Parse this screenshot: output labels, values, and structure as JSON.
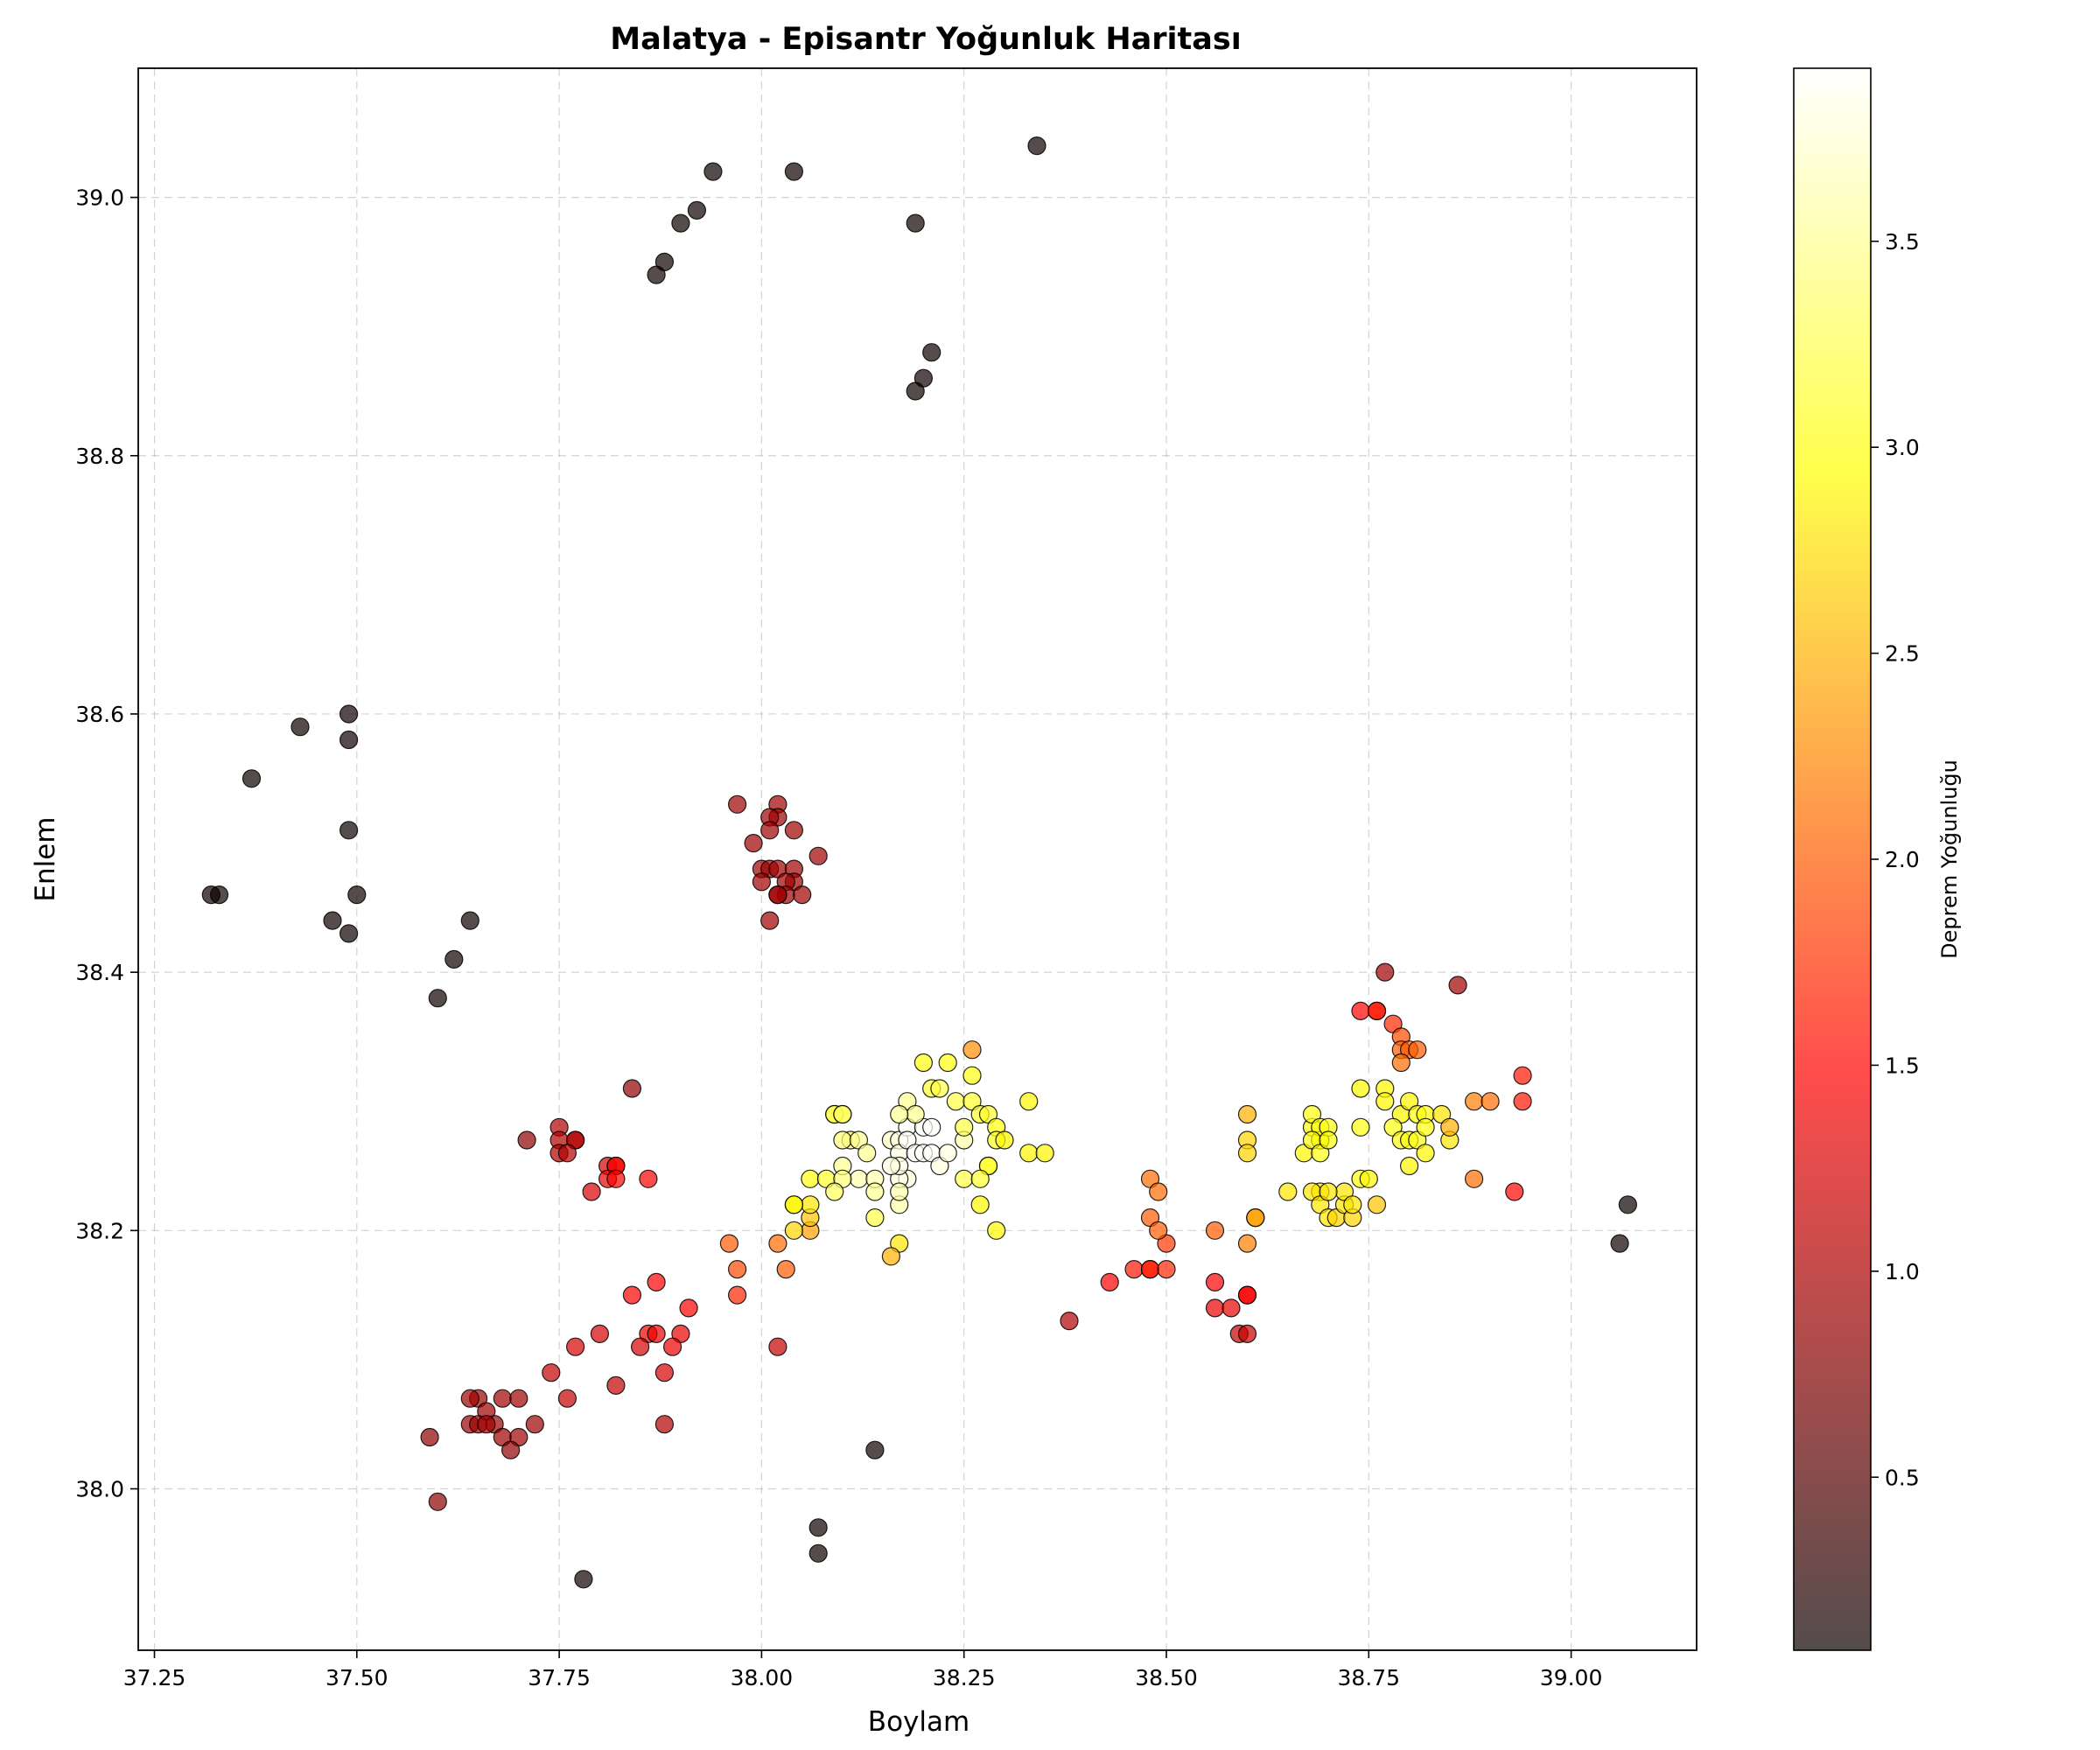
{
  "chart_data": {
    "type": "scatter",
    "title": "Malatya - Episantr Yoğunluk Haritası",
    "xlabel": "Boylam",
    "ylabel": "Enlem",
    "xlim": [
      37.23,
      39.155
    ],
    "ylim": [
      37.875,
      39.1
    ],
    "xticks": [
      37.25,
      37.5,
      37.75,
      38.0,
      38.25,
      38.5,
      38.75,
      39.0
    ],
    "xtick_labels": [
      "37.25",
      "37.50",
      "37.75",
      "38.00",
      "38.25",
      "38.50",
      "38.75",
      "39.00"
    ],
    "yticks": [
      38.0,
      38.2,
      38.4,
      38.6,
      38.8,
      39.0
    ],
    "ytick_labels": [
      "38.0",
      "38.2",
      "38.4",
      "38.6",
      "38.8",
      "39.0"
    ],
    "grid": true,
    "colormap": "hot",
    "point_alpha": 0.7,
    "colorbar": {
      "label": "Deprem Yoğunluğu",
      "range": [
        0.08,
        3.92
      ],
      "ticks": [
        0.5,
        1.0,
        1.5,
        2.0,
        2.5,
        3.0,
        3.5
      ],
      "tick_labels": [
        "0.5",
        "1.0",
        "1.5",
        "2.0",
        "2.5",
        "3.0",
        "3.5"
      ]
    },
    "point_fields": [
      "lon",
      "lat",
      "density"
    ],
    "points": [
      [
        38.34,
        39.04,
        0.1
      ],
      [
        38.04,
        39.02,
        0.1
      ],
      [
        37.94,
        39.02,
        0.1
      ],
      [
        37.92,
        38.99,
        0.1
      ],
      [
        37.9,
        38.98,
        0.1
      ],
      [
        37.88,
        38.95,
        0.1
      ],
      [
        37.87,
        38.94,
        0.1
      ],
      [
        38.19,
        38.98,
        0.1
      ],
      [
        38.21,
        38.88,
        0.1
      ],
      [
        38.2,
        38.86,
        0.1
      ],
      [
        38.19,
        38.85,
        0.1
      ],
      [
        37.49,
        38.6,
        0.1
      ],
      [
        37.43,
        38.59,
        0.1
      ],
      [
        37.49,
        38.58,
        0.1
      ],
      [
        37.37,
        38.55,
        0.1
      ],
      [
        37.49,
        38.51,
        0.1
      ],
      [
        37.33,
        38.46,
        0.1
      ],
      [
        37.32,
        38.46,
        0.1
      ],
      [
        37.5,
        38.46,
        0.1
      ],
      [
        37.47,
        38.44,
        0.1
      ],
      [
        37.64,
        38.44,
        0.1
      ],
      [
        37.49,
        38.43,
        0.1
      ],
      [
        37.62,
        38.41,
        0.1
      ],
      [
        37.6,
        38.38,
        0.1
      ],
      [
        39.07,
        38.22,
        0.1
      ],
      [
        39.06,
        38.19,
        0.1
      ],
      [
        38.14,
        38.03,
        0.1
      ],
      [
        38.07,
        37.97,
        0.1
      ],
      [
        38.07,
        37.95,
        0.1
      ],
      [
        37.78,
        37.93,
        0.1
      ],
      [
        37.97,
        38.53,
        0.9
      ],
      [
        38.02,
        38.53,
        0.9
      ],
      [
        38.02,
        38.52,
        0.9
      ],
      [
        38.01,
        38.52,
        0.9
      ],
      [
        38.01,
        38.51,
        0.9
      ],
      [
        38.04,
        38.51,
        0.9
      ],
      [
        37.99,
        38.5,
        0.9
      ],
      [
        38.07,
        38.49,
        0.9
      ],
      [
        38.0,
        38.48,
        0.9
      ],
      [
        38.01,
        38.48,
        0.9
      ],
      [
        38.02,
        38.48,
        0.9
      ],
      [
        38.04,
        38.48,
        0.9
      ],
      [
        38.04,
        38.47,
        0.9
      ],
      [
        38.0,
        38.47,
        0.9
      ],
      [
        38.03,
        38.47,
        0.9
      ],
      [
        38.03,
        38.46,
        0.9
      ],
      [
        38.02,
        38.46,
        0.9
      ],
      [
        38.02,
        38.46,
        0.9
      ],
      [
        38.05,
        38.46,
        0.9
      ],
      [
        38.01,
        38.44,
        0.9
      ],
      [
        37.84,
        38.31,
        0.8
      ],
      [
        37.71,
        38.27,
        0.8
      ],
      [
        37.75,
        38.28,
        1.0
      ],
      [
        37.75,
        38.27,
        1.0
      ],
      [
        37.77,
        38.27,
        1.0
      ],
      [
        37.77,
        38.27,
        1.0
      ],
      [
        37.75,
        38.26,
        1.0
      ],
      [
        37.76,
        38.26,
        1.0
      ],
      [
        37.81,
        38.25,
        1.2
      ],
      [
        37.82,
        38.25,
        1.4
      ],
      [
        37.82,
        38.25,
        1.4
      ],
      [
        37.81,
        38.24,
        1.3
      ],
      [
        37.82,
        38.24,
        1.4
      ],
      [
        37.86,
        38.24,
        1.4
      ],
      [
        37.79,
        38.23,
        1.2
      ],
      [
        37.84,
        38.15,
        1.4
      ],
      [
        37.87,
        38.16,
        1.4
      ],
      [
        37.91,
        38.14,
        1.4
      ],
      [
        37.86,
        38.12,
        1.3
      ],
      [
        37.87,
        38.12,
        1.3
      ],
      [
        37.9,
        38.12,
        1.3
      ],
      [
        37.89,
        38.11,
        1.3
      ],
      [
        37.85,
        38.11,
        1.2
      ],
      [
        37.8,
        38.12,
        1.2
      ],
      [
        37.77,
        38.11,
        1.2
      ],
      [
        37.88,
        38.09,
        1.2
      ],
      [
        37.74,
        38.09,
        1.1
      ],
      [
        37.82,
        38.08,
        1.1
      ],
      [
        37.76,
        38.07,
        1.1
      ],
      [
        37.88,
        38.05,
        1.0
      ],
      [
        38.02,
        38.11,
        1.1
      ],
      [
        37.65,
        38.07,
        0.9
      ],
      [
        37.68,
        38.07,
        0.9
      ],
      [
        37.64,
        38.07,
        0.9
      ],
      [
        37.7,
        38.07,
        0.9
      ],
      [
        37.66,
        38.06,
        0.9
      ],
      [
        37.64,
        38.05,
        0.9
      ],
      [
        37.65,
        38.05,
        0.9
      ],
      [
        37.67,
        38.05,
        0.9
      ],
      [
        37.72,
        38.05,
        0.9
      ],
      [
        37.66,
        38.05,
        0.9
      ],
      [
        37.68,
        38.04,
        0.9
      ],
      [
        37.7,
        38.04,
        0.9
      ],
      [
        37.59,
        38.04,
        0.8
      ],
      [
        37.69,
        38.03,
        0.8
      ],
      [
        37.6,
        37.99,
        0.8
      ],
      [
        37.96,
        38.19,
        2.0
      ],
      [
        37.97,
        38.17,
        1.9
      ],
      [
        37.97,
        38.15,
        1.7
      ],
      [
        38.02,
        38.19,
        2.1
      ],
      [
        38.03,
        38.17,
        2.0
      ],
      [
        38.06,
        38.2,
        2.4
      ],
      [
        38.06,
        38.21,
        2.6
      ],
      [
        38.06,
        38.22,
        2.8
      ],
      [
        38.04,
        38.2,
        2.7
      ],
      [
        38.04,
        38.22,
        2.9
      ],
      [
        38.04,
        38.22,
        2.9
      ],
      [
        38.06,
        38.24,
        3.0
      ],
      [
        38.17,
        38.19,
        2.8
      ],
      [
        38.16,
        38.18,
        2.5
      ],
      [
        38.14,
        38.21,
        3.2
      ],
      [
        38.08,
        38.24,
        3.1
      ],
      [
        38.09,
        38.29,
        3.2
      ],
      [
        38.09,
        38.29,
        3.2
      ],
      [
        38.1,
        38.29,
        3.3
      ],
      [
        38.1,
        38.29,
        3.3
      ],
      [
        38.11,
        38.27,
        3.4
      ],
      [
        38.1,
        38.27,
        3.4
      ],
      [
        38.12,
        38.27,
        3.5
      ],
      [
        38.13,
        38.26,
        3.5
      ],
      [
        38.1,
        38.25,
        3.5
      ],
      [
        38.12,
        38.24,
        3.6
      ],
      [
        38.14,
        38.24,
        3.6
      ],
      [
        38.14,
        38.23,
        3.5
      ],
      [
        38.1,
        38.24,
        3.4
      ],
      [
        38.09,
        38.23,
        3.3
      ],
      [
        38.16,
        38.27,
        3.7
      ],
      [
        38.17,
        38.27,
        3.8
      ],
      [
        38.17,
        38.26,
        3.8
      ],
      [
        38.18,
        38.28,
        3.9
      ],
      [
        38.18,
        38.27,
        3.9
      ],
      [
        38.2,
        38.28,
        3.9
      ],
      [
        38.21,
        38.28,
        3.9
      ],
      [
        38.19,
        38.26,
        3.9
      ],
      [
        38.2,
        38.26,
        3.9
      ],
      [
        38.21,
        38.26,
        3.9
      ],
      [
        38.18,
        38.24,
        3.8
      ],
      [
        38.17,
        38.24,
        3.8
      ],
      [
        38.17,
        38.25,
        3.8
      ],
      [
        38.16,
        38.25,
        3.8
      ],
      [
        38.22,
        38.25,
        3.8
      ],
      [
        38.23,
        38.26,
        3.8
      ],
      [
        38.25,
        38.27,
        3.6
      ],
      [
        38.17,
        38.22,
        3.6
      ],
      [
        38.17,
        38.23,
        3.6
      ],
      [
        38.18,
        38.3,
        3.5
      ],
      [
        38.19,
        38.29,
        3.5
      ],
      [
        38.17,
        38.29,
        3.5
      ],
      [
        38.2,
        38.33,
        3.0
      ],
      [
        38.23,
        38.33,
        3.0
      ],
      [
        38.21,
        38.31,
        3.1
      ],
      [
        38.22,
        38.31,
        3.2
      ],
      [
        38.24,
        38.3,
        3.2
      ],
      [
        38.26,
        38.3,
        3.1
      ],
      [
        38.26,
        38.32,
        3.0
      ],
      [
        38.25,
        38.28,
        3.2
      ],
      [
        38.27,
        38.29,
        3.1
      ],
      [
        38.28,
        38.29,
        3.1
      ],
      [
        38.29,
        38.28,
        3.0
      ],
      [
        38.29,
        38.27,
        3.1
      ],
      [
        38.28,
        38.25,
        3.1
      ],
      [
        38.28,
        38.25,
        3.1
      ],
      [
        38.25,
        38.24,
        3.2
      ],
      [
        38.27,
        38.24,
        3.1
      ],
      [
        38.27,
        38.22,
        2.9
      ],
      [
        38.3,
        38.27,
        2.9
      ],
      [
        38.33,
        38.26,
        2.9
      ],
      [
        38.33,
        38.3,
        2.9
      ],
      [
        38.35,
        38.26,
        2.9
      ],
      [
        38.29,
        38.2,
        2.9
      ],
      [
        38.26,
        38.34,
        2.3
      ],
      [
        38.38,
        38.13,
        1.0
      ],
      [
        38.43,
        38.16,
        1.4
      ],
      [
        38.46,
        38.17,
        1.6
      ],
      [
        38.48,
        38.17,
        1.7
      ],
      [
        38.48,
        38.17,
        1.6
      ],
      [
        38.5,
        38.17,
        1.7
      ],
      [
        38.5,
        38.19,
        1.8
      ],
      [
        38.48,
        38.21,
        2.0
      ],
      [
        38.49,
        38.2,
        2.0
      ],
      [
        38.48,
        38.24,
        2.1
      ],
      [
        38.49,
        38.23,
        2.1
      ],
      [
        38.56,
        38.16,
        1.4
      ],
      [
        38.56,
        38.14,
        1.3
      ],
      [
        38.58,
        38.14,
        1.3
      ],
      [
        38.6,
        38.15,
        1.4
      ],
      [
        38.6,
        38.15,
        1.4
      ],
      [
        38.59,
        38.12,
        1.1
      ],
      [
        38.6,
        38.12,
        1.1
      ],
      [
        38.56,
        38.2,
        2.0
      ],
      [
        38.6,
        38.19,
        2.2
      ],
      [
        38.61,
        38.21,
        2.4
      ],
      [
        38.61,
        38.21,
        2.4
      ],
      [
        38.6,
        38.29,
        2.5
      ],
      [
        38.6,
        38.27,
        2.7
      ],
      [
        38.6,
        38.26,
        2.7
      ],
      [
        38.65,
        38.23,
        2.8
      ],
      [
        38.67,
        38.26,
        2.9
      ],
      [
        38.68,
        38.28,
        3.0
      ],
      [
        38.68,
        38.29,
        3.0
      ],
      [
        38.69,
        38.27,
        3.0
      ],
      [
        38.69,
        38.27,
        3.0
      ],
      [
        38.69,
        38.28,
        3.0
      ],
      [
        38.7,
        38.28,
        3.0
      ],
      [
        38.68,
        38.27,
        3.0
      ],
      [
        38.69,
        38.26,
        3.0
      ],
      [
        38.7,
        38.27,
        3.0
      ],
      [
        38.69,
        38.23,
        2.8
      ],
      [
        38.68,
        38.23,
        2.8
      ],
      [
        38.69,
        38.22,
        2.8
      ],
      [
        38.7,
        38.21,
        2.8
      ],
      [
        38.71,
        38.21,
        2.7
      ],
      [
        38.72,
        38.22,
        2.8
      ],
      [
        38.72,
        38.23,
        2.8
      ],
      [
        38.73,
        38.21,
        2.7
      ],
      [
        38.73,
        38.22,
        2.8
      ],
      [
        38.7,
        38.23,
        2.8
      ],
      [
        38.74,
        38.24,
        3.0
      ],
      [
        38.75,
        38.24,
        2.9
      ],
      [
        38.74,
        38.31,
        2.9
      ],
      [
        38.76,
        38.22,
        2.6
      ],
      [
        38.77,
        38.31,
        2.9
      ],
      [
        38.77,
        38.3,
        2.9
      ],
      [
        38.79,
        38.29,
        2.9
      ],
      [
        38.8,
        38.3,
        2.9
      ],
      [
        38.78,
        38.28,
        3.0
      ],
      [
        38.79,
        38.27,
        3.0
      ],
      [
        38.8,
        38.27,
        3.0
      ],
      [
        38.81,
        38.27,
        3.0
      ],
      [
        38.8,
        38.25,
        2.9
      ],
      [
        38.82,
        38.26,
        2.9
      ],
      [
        38.81,
        38.29,
        3.0
      ],
      [
        38.82,
        38.29,
        3.0
      ],
      [
        38.82,
        38.28,
        3.0
      ],
      [
        38.84,
        38.29,
        2.8
      ],
      [
        38.85,
        38.27,
        2.8
      ],
      [
        38.85,
        38.28,
        2.5
      ],
      [
        38.74,
        38.28,
        3.0
      ],
      [
        38.88,
        38.3,
        2.2
      ],
      [
        38.9,
        38.3,
        2.1
      ],
      [
        38.88,
        38.24,
        2.1
      ],
      [
        38.93,
        38.23,
        1.5
      ],
      [
        38.94,
        38.3,
        1.6
      ],
      [
        38.94,
        38.32,
        1.6
      ],
      [
        38.86,
        38.39,
        0.9
      ],
      [
        38.77,
        38.4,
        0.9
      ],
      [
        38.74,
        38.37,
        1.5
      ],
      [
        38.76,
        38.37,
        1.6
      ],
      [
        38.76,
        38.37,
        1.6
      ],
      [
        38.78,
        38.36,
        1.7
      ],
      [
        38.79,
        38.35,
        1.9
      ],
      [
        38.79,
        38.34,
        2.0
      ],
      [
        38.8,
        38.34,
        2.0
      ],
      [
        38.81,
        38.34,
        2.0
      ],
      [
        38.79,
        38.33,
        2.1
      ]
    ]
  }
}
